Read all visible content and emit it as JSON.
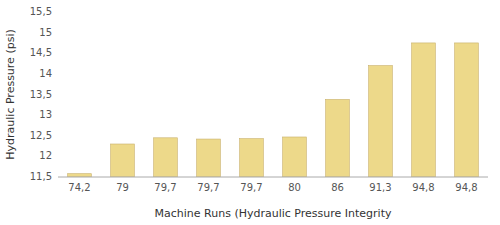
{
  "chart_data": {
    "type": "bar",
    "categories": [
      "74,2",
      "79",
      "79,7",
      "79,7",
      "79,7",
      "80",
      "86",
      "91,3",
      "94,8",
      "94,8"
    ],
    "values": [
      11.58,
      12.3,
      12.45,
      12.42,
      12.43,
      12.47,
      13.38,
      14.2,
      14.75,
      14.75
    ],
    "color": "#EDD98A",
    "xlabel": "Machine Runs (Hydraulic Pressure Integrity",
    "ylabel": "Hydraulic Pressure (psi)",
    "ylim": [
      11.5,
      15.5
    ],
    "yticks": [
      {
        "value": 11.5,
        "label": "11,5"
      },
      12,
      {
        "value": 12.5,
        "label": "12,5"
      },
      13,
      {
        "value": 13.5,
        "label": "13,5"
      },
      14,
      {
        "value": 14.5,
        "label": "14,5"
      },
      15,
      {
        "value": 15.5,
        "label": "15,5"
      }
    ],
    "grid": false
  }
}
